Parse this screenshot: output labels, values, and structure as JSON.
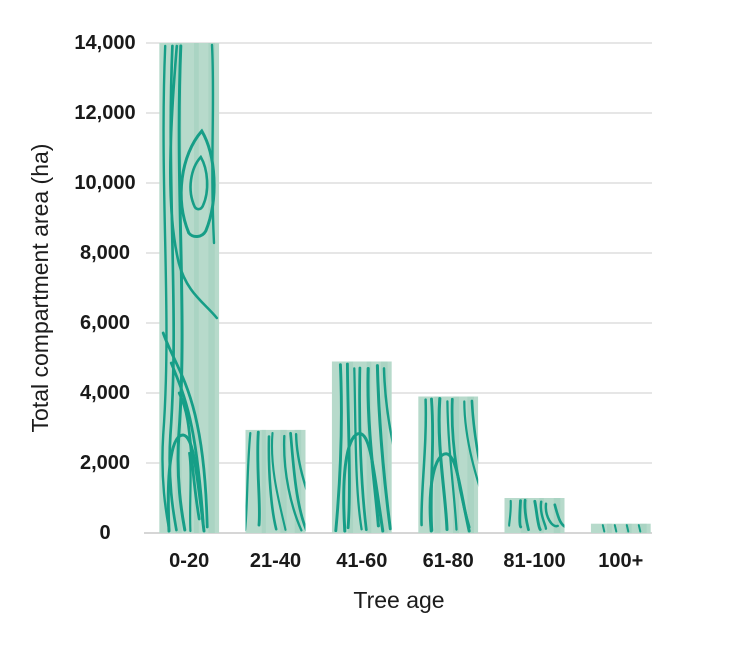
{
  "chart_data": {
    "type": "bar",
    "title": "",
    "categories": [
      "0-20",
      "21-40",
      "41-60",
      "61-80",
      "81-100",
      "100+"
    ],
    "values": [
      14000,
      2950,
      4900,
      3900,
      1000,
      270
    ],
    "xlabel": "Tree age",
    "ylabel": "Total compartment area (ha)",
    "ylim": [
      0,
      14000
    ],
    "ytick_interval": 2000,
    "yticks": [
      0,
      2000,
      4000,
      6000,
      8000,
      10000,
      12000,
      14000
    ],
    "ytick_labels": [
      "0",
      "2,000",
      "4,000",
      "6,000",
      "8,000",
      "10,000",
      "12,000",
      "14,000"
    ],
    "grid": true,
    "legend": false,
    "style": {
      "bar_fill": "#b7dacb",
      "bar_band": "#8ec7b2",
      "grain_stroke": "#169e87",
      "texture": "wood-grain",
      "gridline_color": "#dedede",
      "axis_line_color": "#d6d6d6",
      "text_color": "#1a1a1a",
      "background": "#ffffff"
    }
  }
}
